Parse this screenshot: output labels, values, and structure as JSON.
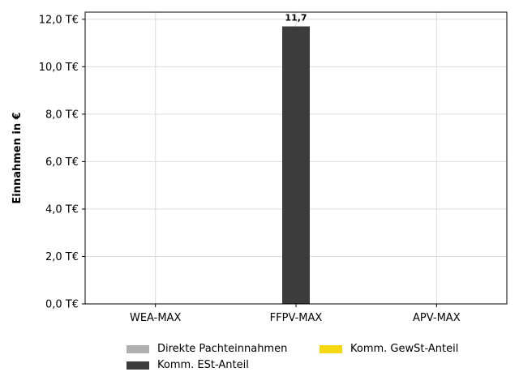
{
  "chart_data": {
    "type": "bar",
    "categories": [
      "WEA-MAX",
      "FFPV-MAX",
      "APV-MAX"
    ],
    "series": [
      {
        "name": "Direkte Pachteinnahmen",
        "values": [
          0,
          0,
          0
        ],
        "color": "#b0b0b0"
      },
      {
        "name": "Komm. ESt-Anteil",
        "values": [
          0,
          11.7,
          0
        ],
        "color": "#3c3c3c"
      },
      {
        "name": "Komm. GewSt-Anteil",
        "values": [
          0,
          0,
          0
        ],
        "color": "#f5d80f"
      }
    ],
    "data_labels": [
      {
        "category": "FFPV-MAX",
        "series": "Komm. ESt-Anteil",
        "text": "11,7"
      }
    ],
    "ylabel": "Einnahmen in €",
    "xlabel": "",
    "ylim": [
      0,
      12.3
    ],
    "yticks": [
      0,
      2,
      4,
      6,
      8,
      10,
      12
    ],
    "ytick_labels": [
      "0,0 T€",
      "2,0 T€",
      "4,0 T€",
      "6,0 T€",
      "8,0 T€",
      "10,0 T€",
      "12,0 T€"
    ],
    "grid": true,
    "legend_placement": "bottom-center"
  }
}
